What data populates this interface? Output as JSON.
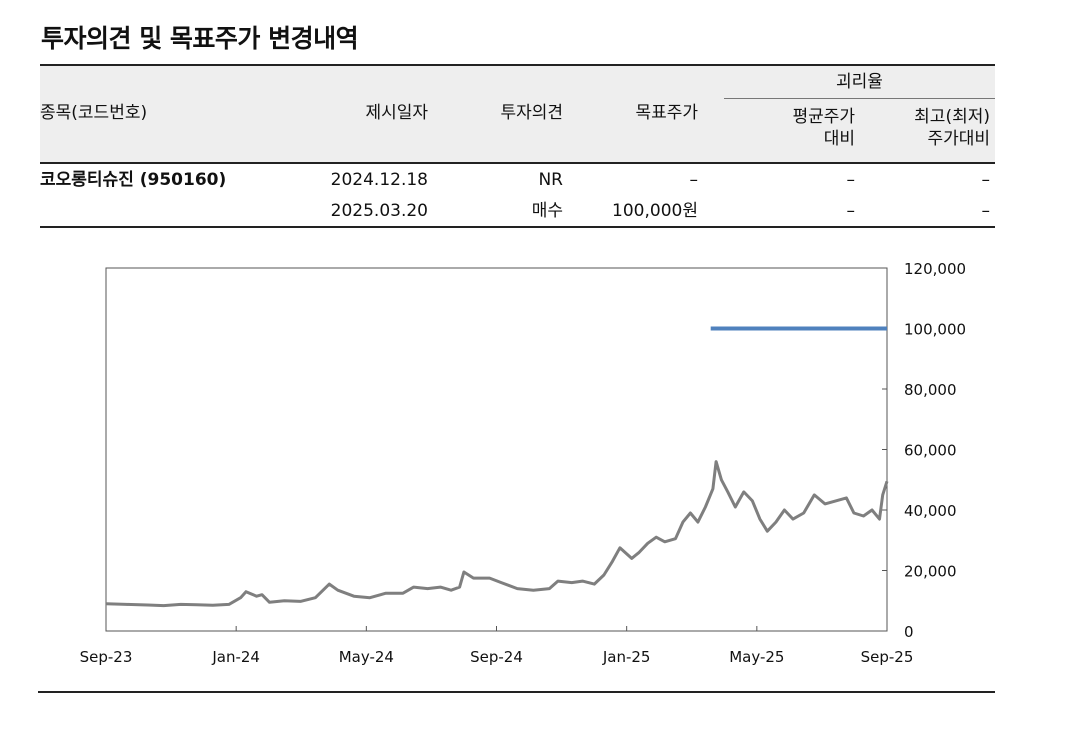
{
  "title": "투자의견 및 목표주가 변경내역",
  "table": {
    "headers": {
      "stock": "종목(코드번호)",
      "date": "제시일자",
      "opinion": "투자의견",
      "target": "목표주가",
      "gap": "괴리율",
      "avg": "평균주가\n대비",
      "maxmin": "최고(최저)\n주가대비"
    },
    "rows": [
      {
        "stock": "코오롱티슈진 (950160)",
        "date": "2024.12.18",
        "opinion": "NR",
        "target": "–",
        "avg": "–",
        "maxmin": "–"
      },
      {
        "stock": "",
        "date": "2025.03.20",
        "opinion": "매수",
        "target": "100,000원",
        "avg": "–",
        "maxmin": "–"
      }
    ]
  },
  "chart_data": {
    "type": "line",
    "x_ticks": [
      "Sep-23",
      "Jan-24",
      "May-24",
      "Sep-24",
      "Jan-25",
      "May-25",
      "Sep-25"
    ],
    "y_ticks": [
      "0",
      "20,000",
      "40,000",
      "60,000",
      "80,000",
      "100,000",
      "120,000"
    ],
    "ylim": [
      0,
      120000
    ],
    "xlim": [
      "2023-09-01",
      "2025-09-01"
    ],
    "y_axis_side": "right",
    "grid": false,
    "series": [
      {
        "color": "#7f7f7f",
        "points": [
          [
            "2023-09-01",
            9000
          ],
          [
            "2023-09-20",
            8800
          ],
          [
            "2023-10-10",
            8600
          ],
          [
            "2023-10-25",
            8400
          ],
          [
            "2023-11-10",
            8800
          ],
          [
            "2023-11-25",
            8700
          ],
          [
            "2023-12-10",
            8500
          ],
          [
            "2023-12-25",
            8800
          ],
          [
            "2024-01-05",
            11000
          ],
          [
            "2024-01-10",
            13000
          ],
          [
            "2024-01-20",
            11500
          ],
          [
            "2024-01-25",
            12000
          ],
          [
            "2024-02-01",
            9500
          ],
          [
            "2024-02-15",
            10000
          ],
          [
            "2024-03-01",
            9800
          ],
          [
            "2024-03-15",
            11000
          ],
          [
            "2024-03-28",
            15500
          ],
          [
            "2024-04-05",
            13500
          ],
          [
            "2024-04-20",
            11500
          ],
          [
            "2024-05-05",
            11000
          ],
          [
            "2024-05-20",
            12500
          ],
          [
            "2024-06-05",
            12500
          ],
          [
            "2024-06-15",
            14500
          ],
          [
            "2024-06-28",
            14000
          ],
          [
            "2024-07-10",
            14500
          ],
          [
            "2024-07-20",
            13500
          ],
          [
            "2024-07-28",
            14500
          ],
          [
            "2024-08-01",
            19500
          ],
          [
            "2024-08-10",
            17500
          ],
          [
            "2024-08-25",
            17500
          ],
          [
            "2024-09-05",
            16000
          ],
          [
            "2024-09-20",
            14000
          ],
          [
            "2024-10-05",
            13500
          ],
          [
            "2024-10-20",
            14000
          ],
          [
            "2024-10-28",
            16500
          ],
          [
            "2024-11-10",
            16000
          ],
          [
            "2024-11-20",
            16500
          ],
          [
            "2024-12-01",
            15500
          ],
          [
            "2024-12-10",
            18500
          ],
          [
            "2024-12-18",
            23000
          ],
          [
            "2024-12-25",
            27500
          ],
          [
            "2025-01-05",
            24000
          ],
          [
            "2025-01-12",
            26000
          ],
          [
            "2025-01-20",
            29000
          ],
          [
            "2025-01-28",
            31000
          ],
          [
            "2025-02-05",
            29500
          ],
          [
            "2025-02-15",
            30500
          ],
          [
            "2025-02-22",
            36000
          ],
          [
            "2025-03-01",
            39000
          ],
          [
            "2025-03-08",
            36000
          ],
          [
            "2025-03-15",
            41000
          ],
          [
            "2025-03-22",
            47000
          ],
          [
            "2025-03-25",
            56000
          ],
          [
            "2025-03-30",
            50000
          ],
          [
            "2025-04-05",
            46000
          ],
          [
            "2025-04-12",
            41000
          ],
          [
            "2025-04-20",
            46000
          ],
          [
            "2025-04-28",
            43000
          ],
          [
            "2025-05-05",
            37000
          ],
          [
            "2025-05-12",
            33000
          ],
          [
            "2025-05-20",
            36000
          ],
          [
            "2025-05-28",
            40000
          ],
          [
            "2025-06-05",
            37000
          ],
          [
            "2025-06-15",
            39000
          ],
          [
            "2025-06-25",
            45000
          ],
          [
            "2025-07-05",
            42000
          ],
          [
            "2025-07-15",
            43000
          ],
          [
            "2025-07-25",
            44000
          ],
          [
            "2025-08-01",
            39000
          ],
          [
            "2025-08-10",
            38000
          ],
          [
            "2025-08-18",
            40000
          ],
          [
            "2025-08-25",
            37000
          ],
          [
            "2025-08-28",
            45000
          ],
          [
            "2025-09-01",
            49500
          ]
        ]
      },
      {
        "color": "#4f81bd",
        "points": [
          [
            "2025-03-20",
            100000
          ],
          [
            "2025-09-01",
            100000
          ]
        ]
      }
    ]
  }
}
